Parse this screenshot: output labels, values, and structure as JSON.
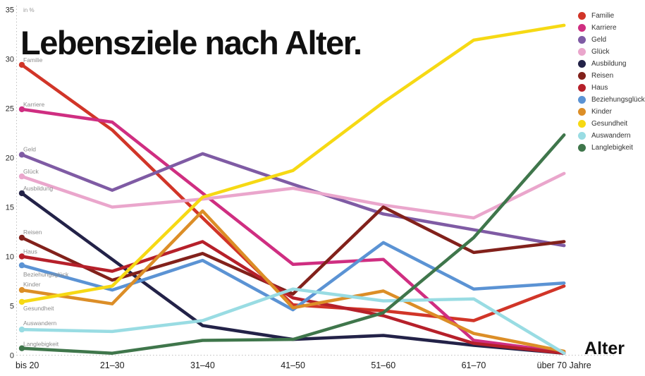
{
  "title": "Lebensziele nach Alter.",
  "unit_label": "in %",
  "x_axis_title": "Alter",
  "chart_data": {
    "type": "line",
    "title": "Lebensziele nach Alter.",
    "ylabel": "in %",
    "xlabel": "Alter",
    "ylim": [
      0,
      35
    ],
    "y_ticks": [
      0,
      5,
      10,
      15,
      20,
      25,
      30,
      35
    ],
    "grid": "dotted left axis and dotted zero baseline only",
    "legend_position": "top-right",
    "categories": [
      "bis 20",
      "21–30",
      "31–40",
      "41–50",
      "51–60",
      "61–70",
      "über 70 Jahre"
    ],
    "series": [
      {
        "name": "Familie",
        "color": "#d13528",
        "values": [
          29.4,
          22.8,
          13.9,
          5.1,
          4.5,
          3.5,
          7.0
        ]
      },
      {
        "name": "Karriere",
        "color": "#cf2e81",
        "values": [
          24.9,
          23.6,
          16.4,
          9.2,
          9.7,
          1.5,
          0.3
        ]
      },
      {
        "name": "Geld",
        "color": "#7f5ba4",
        "values": [
          20.3,
          16.7,
          20.4,
          17.3,
          14.3,
          12.7,
          11.1
        ]
      },
      {
        "name": "Glück",
        "color": "#eaa6cc",
        "values": [
          18.1,
          15.0,
          15.8,
          16.9,
          15.2,
          13.9,
          18.4
        ]
      },
      {
        "name": "Ausbildung",
        "color": "#232248",
        "values": [
          16.4,
          9.7,
          3.0,
          1.6,
          2.0,
          1.0,
          0.2
        ]
      },
      {
        "name": "Reisen",
        "color": "#82211b",
        "values": [
          11.9,
          7.6,
          10.3,
          6.2,
          15.0,
          10.4,
          11.5
        ]
      },
      {
        "name": "Haus",
        "color": "#b6202a",
        "values": [
          10.0,
          8.5,
          11.5,
          5.8,
          4.0,
          1.2,
          0.2
        ]
      },
      {
        "name": "Beziehungsglück",
        "color": "#5b93d4",
        "values": [
          9.1,
          6.6,
          9.6,
          4.6,
          11.4,
          6.7,
          7.3
        ]
      },
      {
        "name": "Kinder",
        "color": "#dc8e27",
        "values": [
          6.6,
          5.2,
          14.6,
          4.8,
          6.5,
          2.2,
          0.4
        ]
      },
      {
        "name": "Gesundheit",
        "color": "#f6d914",
        "values": [
          5.4,
          7.0,
          16.0,
          18.7,
          25.6,
          31.9,
          33.4
        ]
      },
      {
        "name": "Auswandern",
        "color": "#99dce3",
        "values": [
          2.6,
          2.4,
          3.5,
          6.7,
          5.5,
          5.7,
          0.2
        ]
      },
      {
        "name": "Langlebigkeit",
        "color": "#3f764b",
        "values": [
          0.7,
          0.2,
          1.5,
          1.6,
          4.3,
          11.9,
          22.3
        ]
      }
    ]
  }
}
